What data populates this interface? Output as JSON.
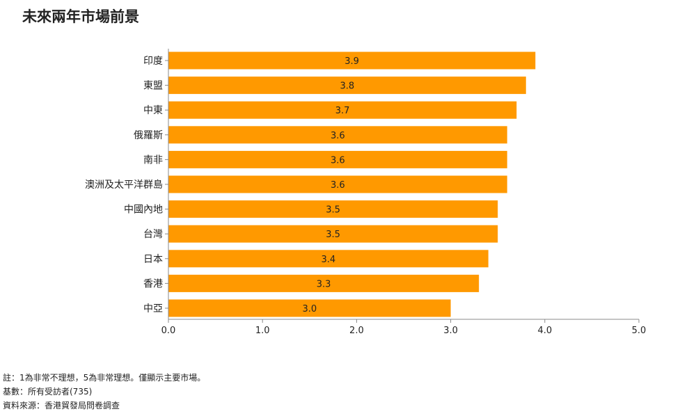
{
  "title": "未來兩年市場前景",
  "chart_data": {
    "type": "bar",
    "orientation": "horizontal",
    "categories": [
      "印度",
      "東盟",
      "中東",
      "俄羅斯",
      "南非",
      "澳洲及太平洋群島",
      "中國內地",
      "台灣",
      "日本",
      "香港",
      "中亞"
    ],
    "values": [
      3.9,
      3.8,
      3.7,
      3.6,
      3.6,
      3.6,
      3.5,
      3.5,
      3.4,
      3.3,
      3.0
    ],
    "value_labels": [
      "3.9",
      "3.8",
      "3.7",
      "3.6",
      "3.6",
      "3.6",
      "3.5",
      "3.5",
      "3.4",
      "3.3",
      "3.0"
    ],
    "xlim": [
      0,
      5
    ],
    "xticks": [
      0,
      1,
      2,
      3,
      4,
      5
    ],
    "xtick_labels": [
      "0.0",
      "1.0",
      "2.0",
      "3.0",
      "4.0",
      "5.0"
    ],
    "bar_color": "#FF9900",
    "grid": false
  },
  "notes": {
    "remark": "註：1為非常不理想，5為非常理想。僅顯示主要市場。",
    "base": "基數：所有受訪者(735)",
    "source": "資料來源：香港貿發局問卷調查"
  }
}
